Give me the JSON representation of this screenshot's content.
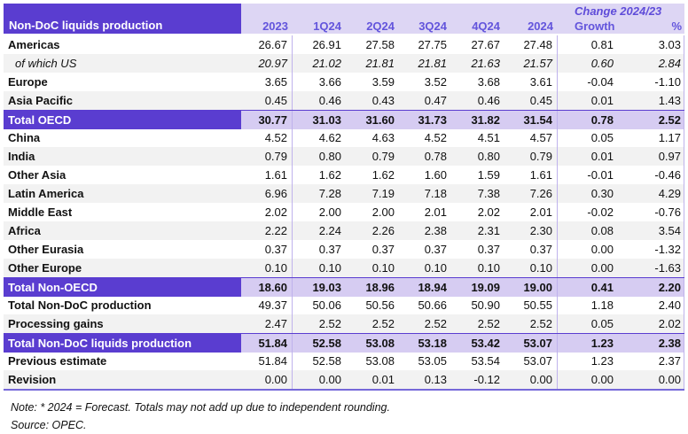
{
  "colors": {
    "accent_dark_purple": "#5A3DD0",
    "header_light_purple": "#DDD6F4",
    "total_row_purple": "#D6CCF2",
    "stripe_gray": "#F2F2F2",
    "separator_lavender": "#BFB2EC",
    "header_text_purple": "#6355DC"
  },
  "header": {
    "title": "Non-DoC liquids production",
    "change_label": "Change 2024/23",
    "columns": [
      "2023",
      "1Q24",
      "2Q24",
      "3Q24",
      "4Q24",
      "2024",
      "Growth",
      "%"
    ]
  },
  "rows": [
    {
      "label": "Americas",
      "type": "data",
      "shade": "white",
      "values": [
        "26.67",
        "26.91",
        "27.58",
        "27.75",
        "27.67",
        "27.48",
        "0.81",
        "3.03"
      ]
    },
    {
      "label": "of which US",
      "type": "em",
      "shade": "gray",
      "values": [
        "20.97",
        "21.02",
        "21.81",
        "21.81",
        "21.63",
        "21.57",
        "0.60",
        "2.84"
      ]
    },
    {
      "label": "Europe",
      "type": "data",
      "shade": "white",
      "values": [
        "3.65",
        "3.66",
        "3.59",
        "3.52",
        "3.68",
        "3.61",
        "-0.04",
        "-1.10"
      ]
    },
    {
      "label": "Asia Pacific",
      "type": "data",
      "shade": "gray",
      "values": [
        "0.45",
        "0.46",
        "0.43",
        "0.47",
        "0.46",
        "0.45",
        "0.01",
        "1.43"
      ]
    },
    {
      "label": "Total OECD",
      "type": "total",
      "shade": "white",
      "values": [
        "30.77",
        "31.03",
        "31.60",
        "31.73",
        "31.82",
        "31.54",
        "0.78",
        "2.52"
      ]
    },
    {
      "label": "China",
      "type": "data",
      "shade": "white",
      "values": [
        "4.52",
        "4.62",
        "4.63",
        "4.52",
        "4.51",
        "4.57",
        "0.05",
        "1.17"
      ]
    },
    {
      "label": "India",
      "type": "data",
      "shade": "gray",
      "values": [
        "0.79",
        "0.80",
        "0.79",
        "0.78",
        "0.80",
        "0.79",
        "0.01",
        "0.97"
      ]
    },
    {
      "label": "Other Asia",
      "type": "data",
      "shade": "white",
      "values": [
        "1.61",
        "1.62",
        "1.62",
        "1.60",
        "1.59",
        "1.61",
        "-0.01",
        "-0.46"
      ]
    },
    {
      "label": "Latin America",
      "type": "data",
      "shade": "gray",
      "values": [
        "6.96",
        "7.28",
        "7.19",
        "7.18",
        "7.38",
        "7.26",
        "0.30",
        "4.29"
      ]
    },
    {
      "label": "Middle East",
      "type": "data",
      "shade": "white",
      "values": [
        "2.02",
        "2.00",
        "2.00",
        "2.01",
        "2.02",
        "2.01",
        "-0.02",
        "-0.76"
      ]
    },
    {
      "label": "Africa",
      "type": "data",
      "shade": "gray",
      "values": [
        "2.22",
        "2.24",
        "2.26",
        "2.38",
        "2.31",
        "2.30",
        "0.08",
        "3.54"
      ]
    },
    {
      "label": "Other Eurasia",
      "type": "data",
      "shade": "white",
      "values": [
        "0.37",
        "0.37",
        "0.37",
        "0.37",
        "0.37",
        "0.37",
        "0.00",
        "-1.32"
      ]
    },
    {
      "label": "Other Europe",
      "type": "data",
      "shade": "gray",
      "values": [
        "0.10",
        "0.10",
        "0.10",
        "0.10",
        "0.10",
        "0.10",
        "0.00",
        "-1.63"
      ]
    },
    {
      "label": "Total Non-OECD",
      "type": "total",
      "shade": "white",
      "values": [
        "18.60",
        "19.03",
        "18.96",
        "18.94",
        "19.09",
        "19.00",
        "0.41",
        "2.20"
      ]
    },
    {
      "label": "Total Non-DoC production",
      "type": "data",
      "shade": "white",
      "values": [
        "49.37",
        "50.06",
        "50.56",
        "50.66",
        "50.90",
        "50.55",
        "1.18",
        "2.40"
      ]
    },
    {
      "label": "Processing gains",
      "type": "data",
      "shade": "gray",
      "values": [
        "2.47",
        "2.52",
        "2.52",
        "2.52",
        "2.52",
        "2.52",
        "0.05",
        "2.02"
      ]
    },
    {
      "label": "Total Non-DoC liquids production",
      "type": "total",
      "shade": "white",
      "values": [
        "51.84",
        "52.58",
        "53.08",
        "53.18",
        "53.42",
        "53.07",
        "1.23",
        "2.38"
      ]
    },
    {
      "label": "Previous estimate",
      "type": "data",
      "shade": "white",
      "values": [
        "51.84",
        "52.58",
        "53.08",
        "53.05",
        "53.54",
        "53.07",
        "1.23",
        "2.37"
      ]
    },
    {
      "label": "Revision",
      "type": "data",
      "shade": "gray",
      "values": [
        "0.00",
        "0.00",
        "0.01",
        "0.13",
        "-0.12",
        "0.00",
        "0.00",
        "0.00"
      ]
    }
  ],
  "notes": {
    "note": "Note: * 2024 = Forecast. Totals may not add up due to independent rounding.",
    "source": "Source: OPEC."
  }
}
